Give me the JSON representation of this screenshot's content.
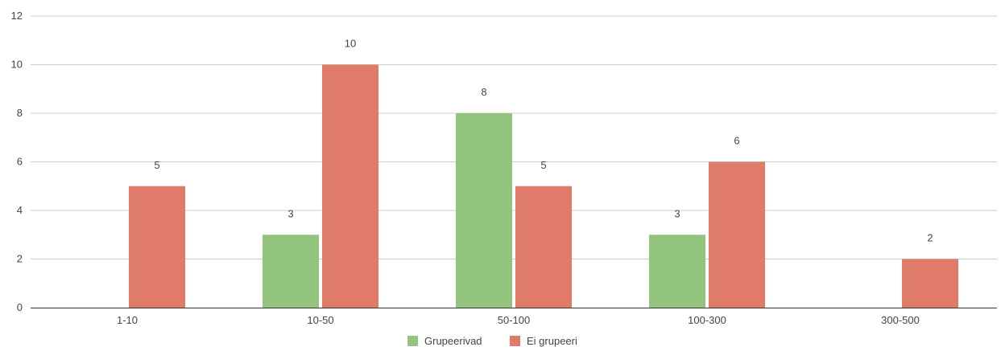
{
  "chart_data": {
    "type": "bar",
    "categories": [
      "1-10",
      "10-50",
      "50-100",
      "100-300",
      "300-500"
    ],
    "series": [
      {
        "name": "Grupeerivad",
        "color": "#93c47d",
        "values": [
          0,
          3,
          8,
          3,
          0
        ]
      },
      {
        "name": "Ei grupeeri",
        "color": "#e07b6a",
        "values": [
          5,
          10,
          5,
          6,
          2
        ]
      }
    ],
    "ylim": [
      0,
      12
    ],
    "yticks": [
      0,
      2,
      4,
      6,
      8,
      10,
      12
    ],
    "grid": true,
    "legend": "bottom",
    "show_data_labels": true,
    "title": "",
    "xlabel": "",
    "ylabel": ""
  }
}
